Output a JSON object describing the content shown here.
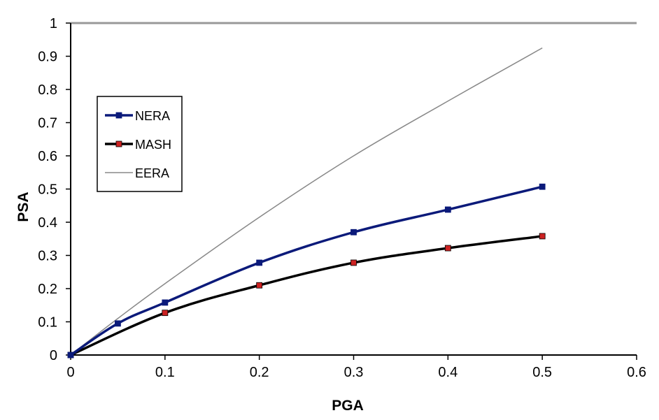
{
  "chart_data": {
    "type": "line",
    "title": "",
    "xlabel": "PGA",
    "ylabel": "PSA",
    "xlim": [
      0,
      0.6
    ],
    "ylim": [
      0,
      1
    ],
    "xticks": [
      "0",
      "0.1",
      "0.2",
      "0.3",
      "0.4",
      "0.5",
      "0.6"
    ],
    "yticks": [
      "0",
      "0.1",
      "0.2",
      "0.3",
      "0.4",
      "0.5",
      "0.6",
      "0.7",
      "0.8",
      "0.9",
      "1"
    ],
    "grid": false,
    "legend_position": "left",
    "series": [
      {
        "name": "NERA",
        "color": "#0b1a7a",
        "markers": true,
        "marker_color": "#0b1a7a",
        "x": [
          0,
          0.05,
          0.1,
          0.2,
          0.3,
          0.4,
          0.5
        ],
        "y": [
          0,
          0.095,
          0.158,
          0.278,
          0.37,
          0.438,
          0.507
        ]
      },
      {
        "name": "MASH",
        "color": "#000000",
        "markers": true,
        "marker_color": "#cc2222",
        "x": [
          0,
          0.1,
          0.2,
          0.3,
          0.4,
          0.5
        ],
        "y": [
          0,
          0.127,
          0.21,
          0.278,
          0.322,
          0.358
        ]
      },
      {
        "name": "EERA",
        "color": "#888888",
        "markers": false,
        "x": [
          0,
          0.05,
          0.1,
          0.2,
          0.3,
          0.4,
          0.5
        ],
        "y": [
          0,
          0.11,
          0.215,
          0.415,
          0.6,
          0.765,
          0.925
        ]
      }
    ]
  }
}
